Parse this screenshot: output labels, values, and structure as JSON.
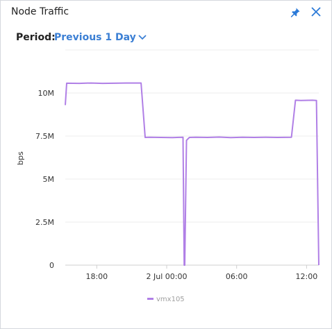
{
  "panel": {
    "title": "Node Traffic",
    "period_label": "Period:",
    "period_value": "Previous 1 Day",
    "accent": "#3b7fd4"
  },
  "chart_data": {
    "type": "line",
    "ylabel": "bps",
    "ylim": [
      0,
      12500000
    ],
    "y_ticks": [
      0,
      2500000,
      5000000,
      7500000,
      10000000,
      12500000
    ],
    "y_tick_labels": [
      "0",
      "2.5M",
      "5M",
      "7.5M",
      "10M",
      ""
    ],
    "xlim": [
      15.3,
      37.05
    ],
    "x_ticks": [
      18,
      24,
      30,
      36
    ],
    "x_tick_labels": [
      "18:00",
      "2 Jul 00:00",
      "06:00",
      "12:00"
    ],
    "grid": true,
    "legend": "bottom",
    "series": [
      {
        "name": "vmx105",
        "color": "#b07fe6",
        "x": [
          15.3,
          15.42,
          16.5,
          17.5,
          18.5,
          19.5,
          20.5,
          21.8,
          22.15,
          22.5,
          23.5,
          24.5,
          25.4,
          25.5,
          25.55,
          25.7,
          25.95,
          26.5,
          27.5,
          28.5,
          29.5,
          30.5,
          31.5,
          32.5,
          33.5,
          34.7,
          35.05,
          35.5,
          36.5,
          36.85,
          37.05
        ],
        "values": [
          9300000,
          10570000,
          10560000,
          10580000,
          10560000,
          10570000,
          10580000,
          10580000,
          7420000,
          7430000,
          7420000,
          7410000,
          7430000,
          0,
          0,
          7250000,
          7420000,
          7430000,
          7420000,
          7440000,
          7410000,
          7430000,
          7420000,
          7430000,
          7420000,
          7430000,
          9580000,
          9570000,
          9580000,
          9570000,
          0
        ]
      }
    ]
  }
}
